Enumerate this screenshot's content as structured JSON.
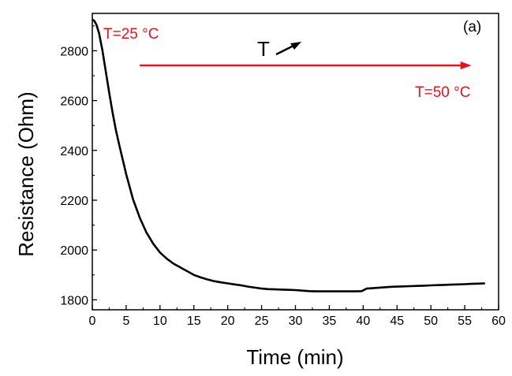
{
  "chart_data": {
    "type": "line",
    "panel_label": "(a)",
    "xlabel": "Time (min)",
    "ylabel": "Resistance (Ohm)",
    "xlim": [
      0,
      60
    ],
    "ylim": [
      1760,
      2950
    ],
    "x_ticks": [
      0,
      5,
      10,
      15,
      20,
      25,
      30,
      35,
      40,
      45,
      50,
      55,
      60
    ],
    "y_ticks": [
      1800,
      2000,
      2200,
      2400,
      2600,
      2800
    ],
    "grid": false,
    "legend": "none",
    "series": [
      {
        "color": "#000000",
        "x": [
          0,
          0.3,
          0.6,
          1,
          1.5,
          2,
          2.5,
          3,
          3.5,
          4,
          5,
          6,
          7,
          8,
          9,
          10,
          11,
          12,
          13,
          14,
          15,
          16,
          17,
          18,
          19,
          20,
          21,
          22,
          23,
          24,
          25,
          26,
          27,
          28,
          29,
          30,
          31,
          32,
          33,
          34,
          35,
          36,
          37,
          38,
          39,
          39.8,
          40.5,
          41,
          42,
          43,
          44,
          45,
          46,
          47,
          48,
          49,
          50,
          51,
          52,
          53,
          54,
          55,
          56,
          57,
          58
        ],
        "y": [
          2925,
          2920,
          2905,
          2870,
          2800,
          2715,
          2630,
          2550,
          2480,
          2420,
          2305,
          2205,
          2130,
          2070,
          2025,
          1990,
          1965,
          1945,
          1930,
          1915,
          1900,
          1890,
          1882,
          1875,
          1870,
          1866,
          1862,
          1858,
          1853,
          1849,
          1845,
          1843,
          1842,
          1841,
          1840,
          1839,
          1837,
          1835,
          1834,
          1834,
          1834,
          1834,
          1834,
          1834,
          1834,
          1835,
          1845,
          1846,
          1848,
          1850,
          1852,
          1853,
          1854,
          1855,
          1856,
          1857,
          1858,
          1859,
          1860,
          1861,
          1862,
          1863,
          1864,
          1865,
          1866
        ]
      }
    ],
    "annotations": {
      "start_label": "T=25 °C",
      "end_label": "T=50 °C",
      "trend_label": "T",
      "arrow_color": "#e8121e",
      "arrow_x": [
        7,
        56
      ]
    }
  }
}
